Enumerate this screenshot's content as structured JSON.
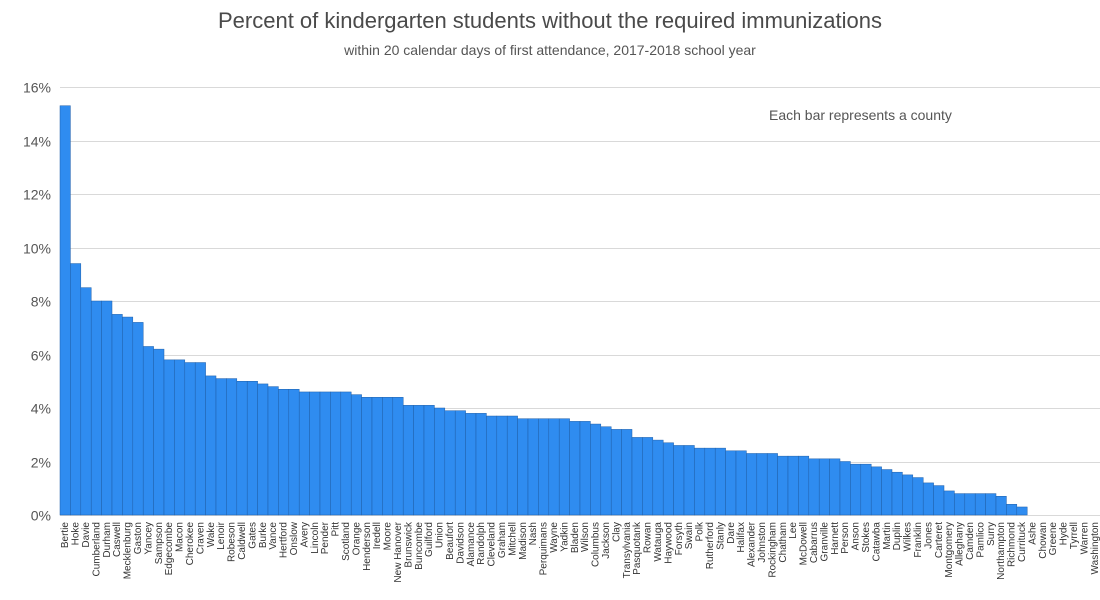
{
  "chart_data": {
    "type": "bar",
    "title": "Percent of kindergarten students without the required immunizations",
    "subtitle": "within 20 calendar days of first attendance, 2017-2018 school year",
    "annotation": "Each bar represents a county",
    "xlabel": "",
    "ylabel": "",
    "ylim": [
      0,
      16
    ],
    "yticks": [
      0,
      2,
      4,
      6,
      8,
      10,
      12,
      14,
      16
    ],
    "ytick_labels": [
      "0%",
      "2%",
      "4%",
      "6%",
      "8%",
      "10%",
      "12%",
      "14%",
      "16%"
    ],
    "grid": true,
    "bar_color": "#2f8cf0",
    "bar_edge_color": "#1f5fa8",
    "categories": [
      "Bertie",
      "Hoke",
      "Davie",
      "Cumberland",
      "Durham",
      "Caswell",
      "Mecklenburg",
      "Gaston",
      "Yancey",
      "Sampson",
      "Edgecombe",
      "Macon",
      "Cherokee",
      "Craven",
      "Wake",
      "Lenoir",
      "Robeson",
      "Caldwell",
      "Gates",
      "Burke",
      "Vance",
      "Hertford",
      "Onslow",
      "Avery",
      "Lincoln",
      "Pender",
      "Pitt",
      "Scotland",
      "Orange",
      "Henderson",
      "Iredell",
      "Moore",
      "New Hanover",
      "Brunswick",
      "Buncombe",
      "Guilford",
      "Union",
      "Beaufort",
      "Davidson",
      "Alamance",
      "Randolph",
      "Cleveland",
      "Graham",
      "Mitchell",
      "Madison",
      "Nash",
      "Perquimans",
      "Wayne",
      "Yadkin",
      "Bladen",
      "Wilson",
      "Columbus",
      "Jackson",
      "Clay",
      "Transylvania",
      "Pasquotank",
      "Rowan",
      "Watauga",
      "Haywood",
      "Forsyth",
      "Swain",
      "Polk",
      "Rutherford",
      "Stanly",
      "Dare",
      "Halifax",
      "Alexander",
      "Johnston",
      "Rockingham",
      "Chatham",
      "Lee",
      "McDowell",
      "Cabarrus",
      "Granville",
      "Harnett",
      "Person",
      "Anson",
      "Stokes",
      "Catawba",
      "Martin",
      "Duplin",
      "Wilkes",
      "Franklin",
      "Jones",
      "Carteret",
      "Montgomery",
      "Alleghany",
      "Camden",
      "Pamlico",
      "Surry",
      "Northampton",
      "Richmond",
      "Currituck",
      "Ashe",
      "Chowan",
      "Greene",
      "Hyde",
      "Tyrrell",
      "Warren",
      "Washington"
    ],
    "values": [
      15.3,
      9.4,
      8.5,
      8.0,
      8.0,
      7.5,
      7.4,
      7.2,
      6.3,
      6.2,
      5.8,
      5.8,
      5.7,
      5.7,
      5.2,
      5.1,
      5.1,
      5.0,
      5.0,
      4.9,
      4.8,
      4.7,
      4.7,
      4.6,
      4.6,
      4.6,
      4.6,
      4.6,
      4.5,
      4.4,
      4.4,
      4.4,
      4.4,
      4.1,
      4.1,
      4.1,
      4.0,
      3.9,
      3.9,
      3.8,
      3.8,
      3.7,
      3.7,
      3.7,
      3.6,
      3.6,
      3.6,
      3.6,
      3.6,
      3.5,
      3.5,
      3.4,
      3.3,
      3.2,
      3.2,
      2.9,
      2.9,
      2.8,
      2.7,
      2.6,
      2.6,
      2.5,
      2.5,
      2.5,
      2.4,
      2.4,
      2.3,
      2.3,
      2.3,
      2.2,
      2.2,
      2.2,
      2.1,
      2.1,
      2.1,
      2.0,
      1.9,
      1.9,
      1.8,
      1.7,
      1.6,
      1.5,
      1.4,
      1.2,
      1.1,
      0.9,
      0.8,
      0.8,
      0.8,
      0.8,
      0.7,
      0.4,
      0.3,
      0.0,
      0.0,
      0.0,
      0.0,
      0.0,
      0.0,
      0.0
    ]
  }
}
